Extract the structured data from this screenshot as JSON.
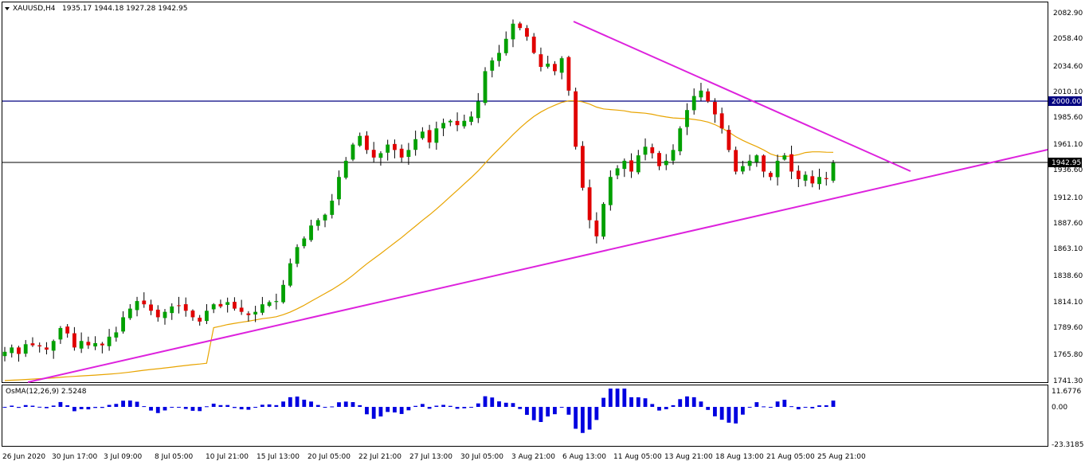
{
  "header": {
    "symbol": "XAUUSD,H4",
    "ohlc": "1935.17 1944.18 1927.28 1942.95",
    "indicator": "OsMA(12,26,9) 2.5248"
  },
  "colors": {
    "bull": "#00a000",
    "bear": "#e00000",
    "wick": "#000000",
    "trendline": "#dd22dd",
    "ma": "#e8a400",
    "level_line": "#000080",
    "osma": "#0000e0",
    "axis": "#000000",
    "background": "#ffffff"
  },
  "price_axis": {
    "ticks": [
      "2082.90",
      "2058.40",
      "2034.60",
      "2010.10",
      "1985.60",
      "1961.10",
      "1936.60",
      "1912.10",
      "1887.60",
      "1863.10",
      "1838.60",
      "1814.10",
      "1789.60",
      "1765.80",
      "1741.30"
    ],
    "marker_2000": "2000.00",
    "marker_current": "1942.95"
  },
  "osma_axis": {
    "ticks": [
      "11.6776",
      "0.00",
      "-23.3185"
    ]
  },
  "time_axis": {
    "labels": [
      "26 Jun 2020",
      "30 Jun 17:00",
      "3 Jul 09:00",
      "8 Jul 05:00",
      "10 Jul 21:00",
      "15 Jul 13:00",
      "20 Jul 05:00",
      "22 Jul 21:00",
      "27 Jul 13:00",
      "30 Jul 05:00",
      "3 Aug 21:00",
      "6 Aug 13:00",
      "11 Aug 05:00",
      "13 Aug 21:00",
      "18 Aug 13:00",
      "21 Aug 05:00",
      "25 Aug 21:00"
    ]
  },
  "chart_data": {
    "type": "candlestick",
    "symbol": "XAUUSD",
    "timeframe": "H4",
    "ylim": [
      1741.3,
      2082.9
    ],
    "osma_ylim": [
      -23.3185,
      11.6776
    ],
    "levels": [
      2000.0,
      1942.95
    ],
    "trendlines": [
      {
        "from": [
          "26 Jun 2020",
          1741.3
        ],
        "to": [
          "right-edge",
          1955.0
        ]
      },
      {
        "from": [
          "6 Aug 13:00",
          2078.0
        ],
        "to": [
          "25 Aug 21:00+",
          1937.0
        ]
      }
    ],
    "close_series": [
      1768,
      1772,
      1766,
      1775,
      1774,
      1773,
      1770,
      1778,
      1790,
      1785,
      1772,
      1778,
      1774,
      1776,
      1774,
      1782,
      1786,
      1800,
      1808,
      1815,
      1812,
      1806,
      1800,
      1805,
      1810,
      1811,
      1806,
      1800,
      1796,
      1806,
      1812,
      1810,
      1814,
      1808,
      1805,
      1802,
      1805,
      1812,
      1814,
      1815,
      1830,
      1850,
      1865,
      1873,
      1885,
      1890,
      1895,
      1908,
      1930,
      1945,
      1960,
      1968,
      1955,
      1948,
      1952,
      1960,
      1955,
      1948,
      1955,
      1965,
      1972,
      1962,
      1975,
      1980,
      1982,
      1978,
      1982,
      1986,
      2000,
      2028,
      2038,
      2045,
      2058,
      2072,
      2068,
      2060,
      2045,
      2032,
      2035,
      2028,
      2040,
      2010,
      1958,
      1920,
      1890,
      1875,
      1905,
      1930,
      1938,
      1945,
      1935,
      1950,
      1958,
      1952,
      1940,
      1945,
      1955,
      1975,
      1992,
      2005,
      2010,
      2000,
      1988,
      1975,
      1955,
      1935,
      1940,
      1945,
      1950,
      1935,
      1930,
      1945,
      1950,
      1935,
      1928,
      1932,
      1924,
      1930,
      1928,
      1942.95
    ]
  }
}
